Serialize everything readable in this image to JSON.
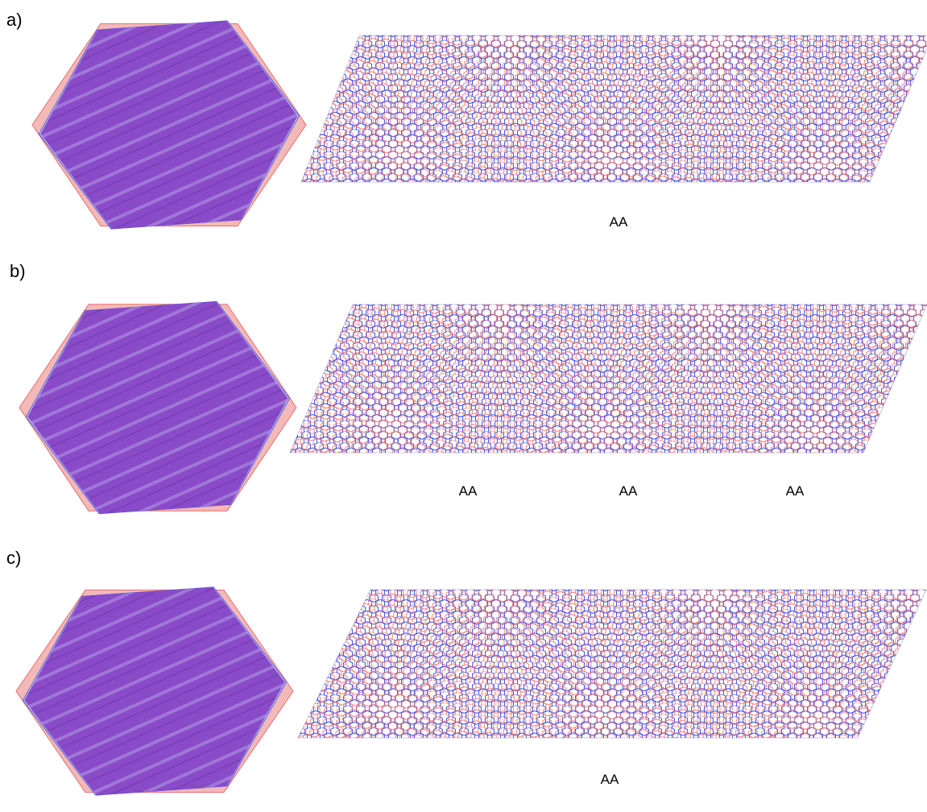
{
  "colors": {
    "bottom_layer": "#e86f6f",
    "top_layer": "#3f4fe0",
    "overlap": "#8a4bc8",
    "background": "#ffffff"
  },
  "panels": [
    {
      "label": "a)",
      "aa_labels": [
        "AA"
      ]
    },
    {
      "label": "b)",
      "aa_labels": [
        "AA",
        "AA",
        "AA"
      ]
    },
    {
      "label": "c)",
      "aa_labels": [
        "AA"
      ]
    }
  ]
}
